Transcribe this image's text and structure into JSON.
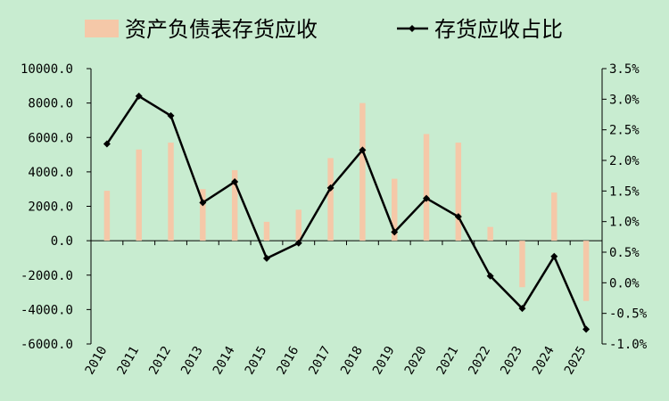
{
  "chart_data": {
    "type": "bar+line",
    "title": "",
    "xlabel": "",
    "categories": [
      "2010",
      "2011",
      "2012",
      "2013",
      "2014",
      "2015",
      "2016",
      "2017",
      "2018",
      "2019",
      "2020",
      "2021",
      "2022",
      "2023",
      "2024",
      "2025"
    ],
    "series": [
      {
        "name": "资产负债表存货应收",
        "type": "bar",
        "axis": "left",
        "color": "#f5c8a8",
        "values": [
          2900,
          5300,
          5700,
          3000,
          4100,
          1100,
          1800,
          4800,
          8000,
          3600,
          6200,
          5700,
          800,
          -2700,
          2800,
          -3500
        ]
      },
      {
        "name": "存货应收占比",
        "type": "line",
        "axis": "right",
        "color": "#000000",
        "marker": "diamond",
        "values": [
          2.27,
          3.05,
          2.73,
          1.31,
          1.65,
          0.4,
          0.65,
          1.55,
          2.17,
          0.83,
          1.38,
          1.08,
          0.11,
          -0.42,
          0.43,
          -0.76
        ]
      }
    ],
    "y_left": {
      "ylim": [
        -6000,
        10000
      ],
      "ticks": [
        -6000,
        -4000,
        -2000,
        0,
        2000,
        4000,
        6000,
        8000,
        10000
      ],
      "tick_labels": [
        "-6000.0",
        "-4000.0",
        "-2000.0",
        "0.0",
        "2000.0",
        "4000.0",
        "6000.0",
        "8000.0",
        "10000.0"
      ]
    },
    "y_right": {
      "ylim": [
        -1.0,
        3.5
      ],
      "ticks": [
        -1.0,
        -0.5,
        0.0,
        0.5,
        1.0,
        1.5,
        2.0,
        2.5,
        3.0,
        3.5
      ],
      "tick_labels": [
        "-1.0%",
        "-0.5%",
        "0.0%",
        "0.5%",
        "1.0%",
        "1.5%",
        "2.0%",
        "2.5%",
        "3.0%",
        "3.5%"
      ]
    },
    "grid": false,
    "legend_position": "top"
  }
}
